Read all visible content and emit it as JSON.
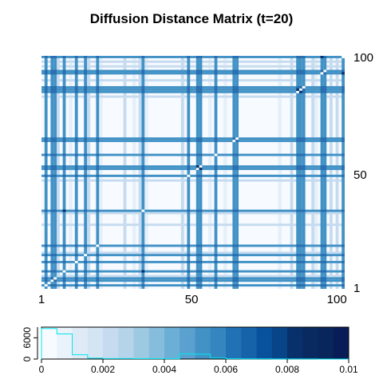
{
  "chart_data": [
    {
      "type": "heatmap",
      "title": "Diffusion Distance Matrix (t=20)",
      "x_ticks": [
        "1",
        "50",
        "100"
      ],
      "y_ticks": [
        "1",
        "50",
        "100"
      ],
      "n": 100,
      "dark_rows": [
        2,
        4,
        5,
        8,
        12,
        15,
        19,
        34,
        49,
        52,
        53,
        58,
        64,
        65,
        85,
        86,
        87,
        93,
        94,
        100
      ],
      "mid_rows": [
        6,
        16,
        28,
        33,
        47,
        83,
        90,
        96,
        98
      ],
      "light_cols": [
        10,
        16,
        20,
        31,
        35,
        47,
        56,
        61,
        79,
        91
      ],
      "colors": {
        "low": "#f7fbff",
        "high": "#08306b",
        "line": "#4292c6",
        "white": "#ffffff"
      }
    },
    {
      "type": "heatmap-key",
      "value_range": [
        0,
        0.01
      ],
      "x_ticks": [
        "0",
        "0.002",
        "0.004",
        "0.006",
        "0.008",
        "0.01"
      ],
      "y_ticks": [
        "0",
        "6000"
      ],
      "bins": 20,
      "color_steps": [
        "#f7fbff",
        "#eaf3fb",
        "#deebf7",
        "#d3e4f3",
        "#c6dbef",
        "#b5d4e9",
        "#9ecae1",
        "#86bcdc",
        "#6baed6",
        "#5aa1cf",
        "#4292c6",
        "#3585bf",
        "#2171b5",
        "#1763aa",
        "#08519c",
        "#084488",
        "#08306b",
        "#082a60",
        "#08265a",
        "#081d58"
      ],
      "histogram": [
        8600,
        7100,
        1200,
        250,
        150,
        150,
        120,
        100,
        90,
        1450,
        1350,
        300,
        80,
        60,
        50,
        40,
        30,
        20,
        10,
        0
      ]
    }
  ]
}
